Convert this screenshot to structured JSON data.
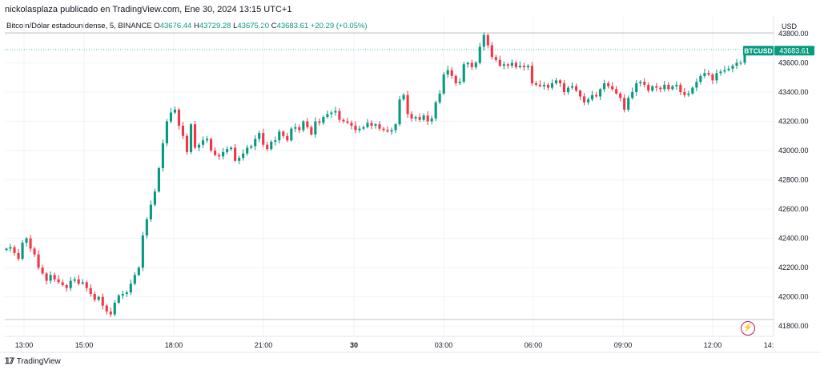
{
  "header": {
    "published": "nickolasplaza publicado en TradingView.com, Ene 30, 2024 13:15 UTC+1",
    "symbol_desc": "Bitcoin/Dólar estadounidense, 5, BINANCE",
    "o_label": "O",
    "o_value": "43676.44",
    "h_label": "H",
    "h_value": "43729.28",
    "l_label": "L",
    "l_value": "43675.20",
    "c_label": "C",
    "c_value": "43683.61",
    "change": "+20.29 (+0.05%)"
  },
  "currency": "USD",
  "footer": {
    "brand": "TradingView"
  },
  "colors": {
    "up": "#089981",
    "down": "#f23645",
    "grid": "#f0f3fa",
    "axis": "#e0e3eb",
    "text": "#131722"
  },
  "chart_data": {
    "type": "candlestick",
    "symbol": "BTCUSD",
    "last_price_label": "43683.61",
    "y_ticks": [
      41800,
      42000,
      42200,
      42400,
      42600,
      42800,
      43000,
      43200,
      43400,
      43600,
      43800
    ],
    "y_tick_labels": [
      "41800.00",
      "42000.00",
      "42200.00",
      "42400.00",
      "42600.00",
      "42800.00",
      "43000.00",
      "43200.00",
      "43400.00",
      "43600.00",
      "43800.00"
    ],
    "x_tick_labels": [
      "13:00",
      "15:00",
      "18:00",
      "21:00",
      "30",
      "03:00",
      "06:00",
      "09:00",
      "12:00",
      "14:"
    ],
    "ylim": [
      41730,
      43920
    ],
    "h_levels": [
      43805,
      43690,
      41845
    ],
    "closes": [
      42330,
      42340,
      42300,
      42260,
      42370,
      42400,
      42330,
      42290,
      42200,
      42160,
      42110,
      42150,
      42120,
      42100,
      42080,
      42060,
      42110,
      42120,
      42090,
      42100,
      42060,
      42020,
      41980,
      42000,
      41940,
      41900,
      41880,
      41960,
      42010,
      42020,
      42030,
      42090,
      42150,
      42200,
      42420,
      42530,
      42630,
      42720,
      42880,
      43050,
      43200,
      43260,
      43280,
      43170,
      43100,
      42990,
      43180,
      43020,
      43040,
      43070,
      43080,
      43000,
      42970,
      42960,
      42990,
      43010,
      43020,
      42930,
      42950,
      42980,
      43020,
      43030,
      43080,
      43120,
      43040,
      43010,
      43060,
      43070,
      43130,
      43100,
      43070,
      43150,
      43160,
      43140,
      43200,
      43160,
      43110,
      43200,
      43190,
      43230,
      43250,
      43260,
      43270,
      43210,
      43200,
      43190,
      43170,
      43140,
      43150,
      43160,
      43190,
      43170,
      43180,
      43150,
      43140,
      43130,
      43140,
      43180,
      43350,
      43380,
      43250,
      43220,
      43230,
      43210,
      43240,
      43200,
      43220,
      43330,
      43390,
      43520,
      43550,
      43510,
      43460,
      43470,
      43590,
      43600,
      43570,
      43600,
      43710,
      43790,
      43720,
      43640,
      43620,
      43580,
      43590,
      43580,
      43600,
      43570,
      43580,
      43570,
      43580,
      43460,
      43450,
      43440,
      43450,
      43430,
      43460,
      43480,
      43460,
      43400,
      43430,
      43440,
      43410,
      43370,
      43330,
      43350,
      43380,
      43370,
      43420,
      43460,
      43440,
      43420,
      43390,
      43360,
      43280,
      43360,
      43400,
      43460,
      43470,
      43450,
      43410,
      43440,
      43430,
      43420,
      43450,
      43420,
      43440,
      43450,
      43400,
      43380,
      43390,
      43430,
      43470,
      43510,
      43530,
      43520,
      43480,
      43530,
      43540,
      43550,
      43560,
      43580,
      43600,
      43600,
      43683
    ]
  }
}
